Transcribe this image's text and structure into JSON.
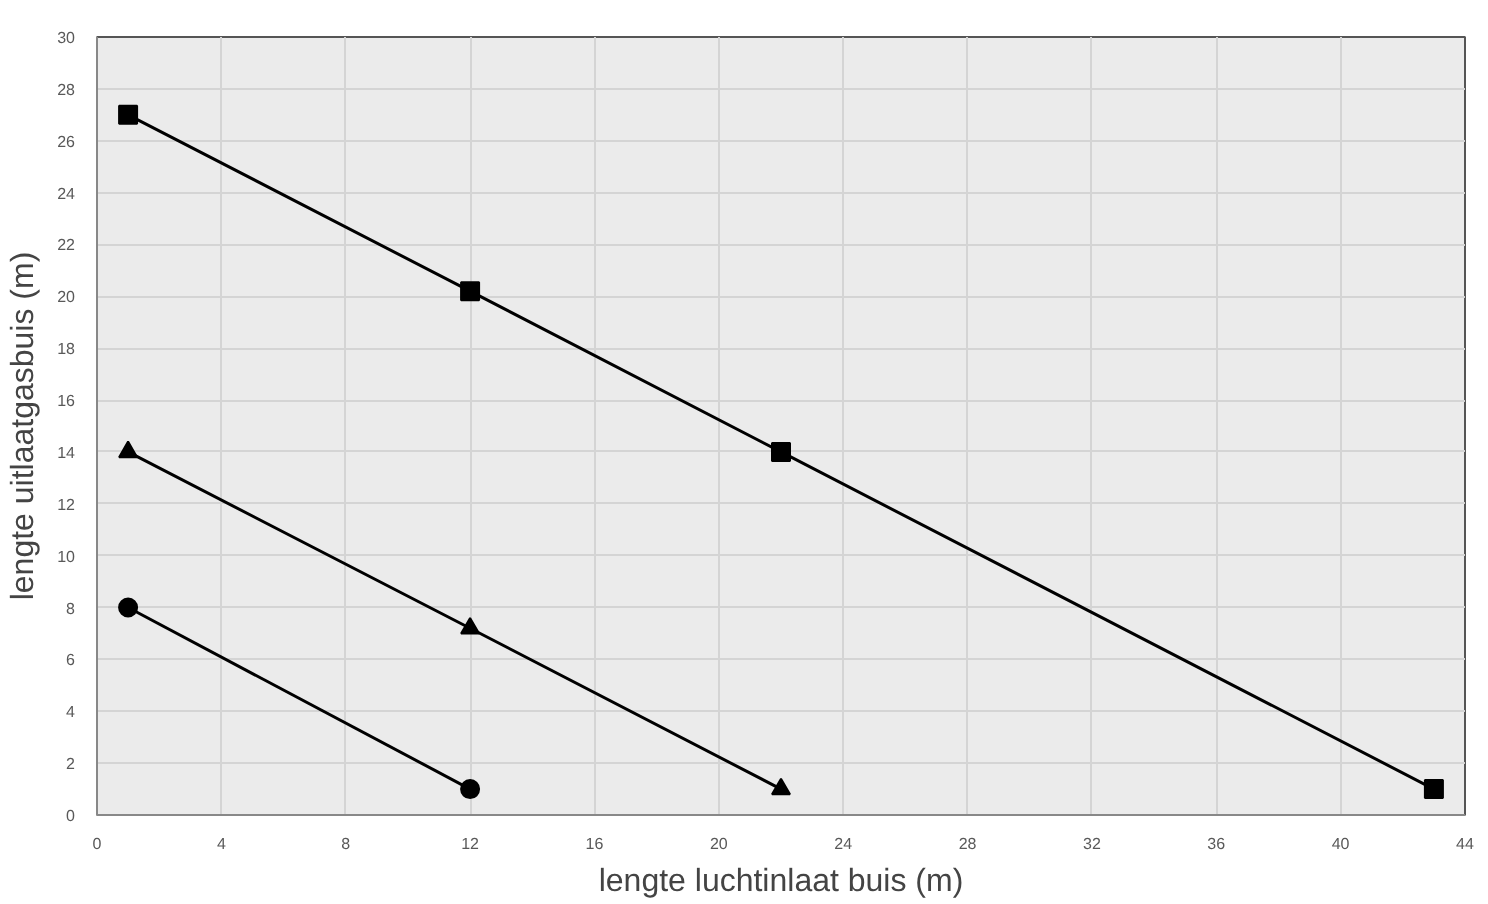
{
  "chart_data": {
    "type": "line",
    "xlabel": "lengte luchtinlaat buis (m)",
    "ylabel": "lengte uitlaatgasbuis (m)",
    "xlim": [
      0,
      44
    ],
    "xticks": [
      0,
      4,
      8,
      12,
      16,
      20,
      24,
      28,
      32,
      36,
      40,
      44
    ],
    "ylim": [
      0,
      30
    ],
    "yticks": [
      0,
      2,
      4,
      6,
      8,
      10,
      12,
      14,
      16,
      18,
      20,
      22,
      24,
      26,
      28,
      30
    ],
    "grid": true,
    "line_style": "solid",
    "series": [
      {
        "color": "#000000",
        "marker": "circle",
        "x": [
          1,
          12
        ],
        "values": [
          8,
          1
        ]
      },
      {
        "color": "#000000",
        "marker": "triangle",
        "x": [
          1,
          12,
          22
        ],
        "values": [
          14,
          7.2,
          1
        ]
      },
      {
        "color": "#000000",
        "marker": "square",
        "x": [
          1,
          12,
          22,
          43
        ],
        "values": [
          27,
          20.2,
          14,
          1
        ]
      }
    ]
  }
}
